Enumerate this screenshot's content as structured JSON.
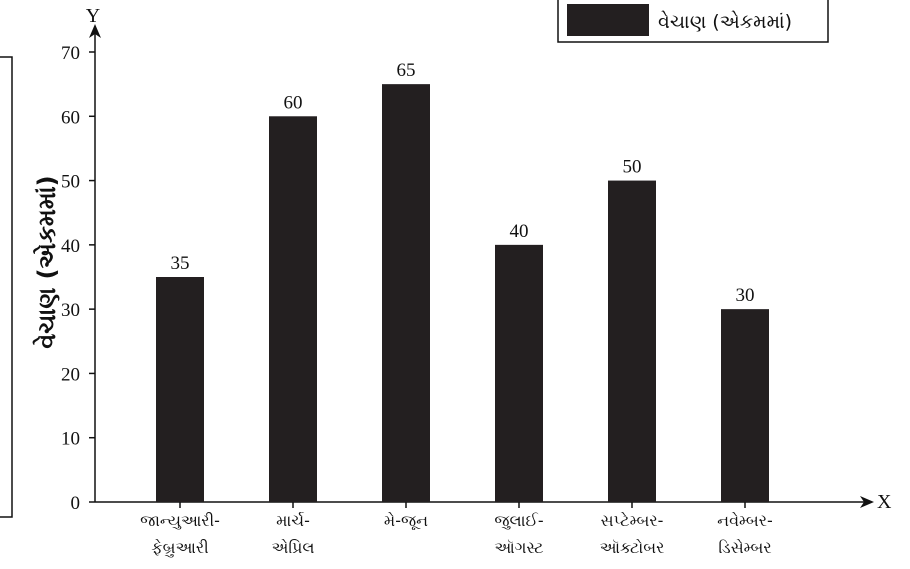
{
  "chart_data": {
    "type": "bar",
    "title": "",
    "categories": [
      [
        "જાન્યુઆરી-",
        "ફેબ્રુઆરી"
      ],
      [
        "માર્ચ-",
        "એપ્રિલ"
      ],
      [
        "મે-જૂન"
      ],
      [
        "જુલાઈ-",
        "ઑગસ્ટ"
      ],
      [
        "સપ્ટેમ્બર-",
        "ઑક્ટોબર"
      ],
      [
        "નવેમ્બર-",
        "ડિસેમ્બર"
      ]
    ],
    "series": [
      {
        "name": "વેચાણ (એકમમાં)",
        "values": [
          35,
          60,
          65,
          40,
          50,
          30
        ],
        "color": "#231f20"
      }
    ],
    "data_labels": [
      "35",
      "60",
      "65",
      "40",
      "50",
      "30"
    ],
    "xlabel": "",
    "ylabel": "વેચાણ (એકમમાં)",
    "x_axis_letter": "X",
    "y_axis_letter": "Y",
    "ylim": [
      0,
      70
    ],
    "yticks": [
      0,
      10,
      20,
      30,
      40,
      50,
      60,
      70
    ],
    "grid": false,
    "legend_position": "top-right"
  }
}
